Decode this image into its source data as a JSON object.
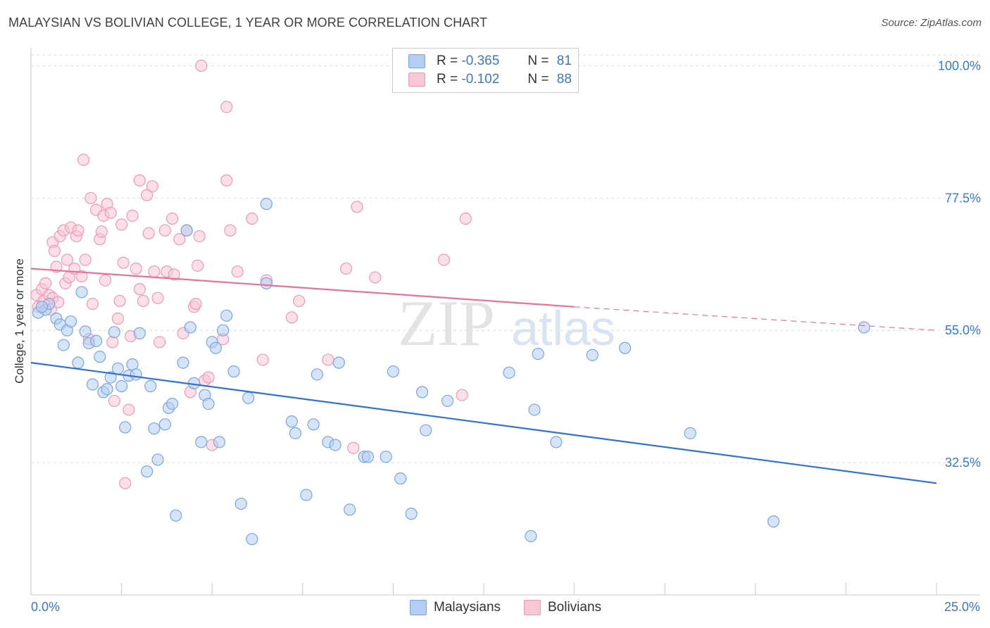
{
  "title": "MALAYSIAN VS BOLIVIAN COLLEGE, 1 YEAR OR MORE CORRELATION CHART",
  "source": "Source: ZipAtlas.com",
  "watermark": {
    "zip": "ZIP",
    "atlas": "atlas"
  },
  "legend": {
    "r_label": "R =",
    "n_label": "N =",
    "malaysian": {
      "r": "-0.365",
      "n": "81"
    },
    "bolivian": {
      "r": "-0.102",
      "n": "88"
    }
  },
  "bottom_legend": {
    "malaysians": "Malaysians",
    "bolivians": "Bolivians"
  },
  "colors": {
    "malaysian_fill": "#b4cdf2",
    "malaysian_stroke": "#7aa6e0",
    "malaysian_line": "#2f72d4",
    "bolivian_fill": "#f8c7d6",
    "bolivian_stroke": "#ef9ab5",
    "bolivian_line": "#e8729a",
    "axis_text": "#3a78c9",
    "grid": "#d9d9d9"
  },
  "chart_data": {
    "type": "scatter",
    "title": "MALAYSIAN VS BOLIVIAN COLLEGE, 1 YEAR OR MORE CORRELATION CHART",
    "xlabel": "",
    "ylabel": "College, 1 year or more",
    "xlim": [
      0,
      25
    ],
    "ylim": [
      10,
      104
    ],
    "x_tick_labels": [
      "0.0%",
      "25.0%"
    ],
    "y_ticks": [
      32.5,
      55.0,
      77.5,
      100.0
    ],
    "y_tick_labels": [
      "32.5%",
      "55.0%",
      "77.5%",
      "100.0%"
    ],
    "grid": true,
    "legend_position": "top-center",
    "series": [
      {
        "name": "Malaysians",
        "r": -0.365,
        "n": 81,
        "trend": {
          "x": [
            0,
            25
          ],
          "y": [
            49.5,
            29.0
          ],
          "dashed_from": null
        },
        "points": [
          [
            0.2,
            58
          ],
          [
            0.4,
            58.5
          ],
          [
            0.5,
            59.5
          ],
          [
            0.7,
            57
          ],
          [
            0.8,
            56
          ],
          [
            0.9,
            52.5
          ],
          [
            1.0,
            55
          ],
          [
            1.1,
            56.5
          ],
          [
            1.3,
            49.5
          ],
          [
            1.4,
            61.5
          ],
          [
            1.5,
            54.8
          ],
          [
            1.6,
            52.8
          ],
          [
            1.7,
            45.8
          ],
          [
            1.8,
            53.2
          ],
          [
            2.0,
            44.5
          ],
          [
            2.1,
            45
          ],
          [
            2.2,
            47
          ],
          [
            2.3,
            54.7
          ],
          [
            2.4,
            48.5
          ],
          [
            2.5,
            45.5
          ],
          [
            2.6,
            38.5
          ],
          [
            2.7,
            47.3
          ],
          [
            2.8,
            49.2
          ],
          [
            2.9,
            47.5
          ],
          [
            3.0,
            54.5
          ],
          [
            3.2,
            31
          ],
          [
            3.3,
            45.5
          ],
          [
            3.4,
            38.3
          ],
          [
            3.5,
            33
          ],
          [
            3.7,
            39
          ],
          [
            3.8,
            41.8
          ],
          [
            3.9,
            42.5
          ],
          [
            4.0,
            23.5
          ],
          [
            4.2,
            49.5
          ],
          [
            4.3,
            72
          ],
          [
            4.4,
            55.5
          ],
          [
            4.5,
            46
          ],
          [
            4.7,
            36
          ],
          [
            4.8,
            44
          ],
          [
            4.9,
            42.5
          ],
          [
            5.0,
            53
          ],
          [
            5.1,
            52
          ],
          [
            5.2,
            36
          ],
          [
            5.3,
            55
          ],
          [
            5.4,
            57.5
          ],
          [
            5.6,
            48
          ],
          [
            5.8,
            25.5
          ],
          [
            6.0,
            43.5
          ],
          [
            6.1,
            19.5
          ],
          [
            6.5,
            63
          ],
          [
            6.5,
            76.5
          ],
          [
            7.2,
            39.5
          ],
          [
            7.3,
            37.5
          ],
          [
            7.6,
            27
          ],
          [
            7.8,
            39
          ],
          [
            7.9,
            47.5
          ],
          [
            8.2,
            36
          ],
          [
            8.4,
            35.5
          ],
          [
            8.5,
            49.5
          ],
          [
            8.8,
            24.5
          ],
          [
            9.2,
            33.5
          ],
          [
            9.3,
            33.5
          ],
          [
            9.8,
            33.5
          ],
          [
            10.0,
            48
          ],
          [
            10.2,
            29.8
          ],
          [
            10.5,
            23.8
          ],
          [
            10.8,
            44.5
          ],
          [
            10.9,
            38
          ],
          [
            11.5,
            43
          ],
          [
            13.2,
            47.8
          ],
          [
            13.8,
            20
          ],
          [
            13.9,
            41.5
          ],
          [
            14.0,
            51
          ],
          [
            14.5,
            36
          ],
          [
            15.5,
            50.8
          ],
          [
            16.4,
            52
          ],
          [
            18.2,
            37.5
          ],
          [
            20.5,
            22.5
          ],
          [
            23.0,
            55.5
          ],
          [
            0.3,
            59
          ],
          [
            1.9,
            50.5
          ]
        ]
      },
      {
        "name": "Bolivians",
        "r": -0.102,
        "n": 88,
        "trend": {
          "x": [
            0,
            15,
            25
          ],
          "y": [
            65.5,
            59,
            55.0
          ],
          "dashed_from": 15
        },
        "points": [
          [
            0.15,
            61
          ],
          [
            0.2,
            59
          ],
          [
            0.3,
            62
          ],
          [
            0.35,
            60
          ],
          [
            0.4,
            63
          ],
          [
            0.5,
            61
          ],
          [
            0.55,
            58.5
          ],
          [
            0.6,
            70
          ],
          [
            0.6,
            60.5
          ],
          [
            0.65,
            68.5
          ],
          [
            0.7,
            65.8
          ],
          [
            0.75,
            59.8
          ],
          [
            0.8,
            71
          ],
          [
            0.9,
            72
          ],
          [
            0.95,
            63
          ],
          [
            1.0,
            67
          ],
          [
            1.05,
            64
          ],
          [
            1.1,
            72.5
          ],
          [
            1.2,
            65.5
          ],
          [
            1.25,
            71
          ],
          [
            1.3,
            72
          ],
          [
            1.4,
            64.2
          ],
          [
            1.45,
            84
          ],
          [
            1.5,
            67
          ],
          [
            1.6,
            53.5
          ],
          [
            1.65,
            77.5
          ],
          [
            1.7,
            59.5
          ],
          [
            1.8,
            75.5
          ],
          [
            1.9,
            70.5
          ],
          [
            1.95,
            71.8
          ],
          [
            2.0,
            74.5
          ],
          [
            2.05,
            63.5
          ],
          [
            2.1,
            76.5
          ],
          [
            2.2,
            75
          ],
          [
            2.25,
            53
          ],
          [
            2.3,
            43
          ],
          [
            2.4,
            57
          ],
          [
            2.45,
            60
          ],
          [
            2.5,
            73
          ],
          [
            2.55,
            66.5
          ],
          [
            2.6,
            29
          ],
          [
            2.7,
            41.5
          ],
          [
            2.75,
            54
          ],
          [
            2.8,
            74.5
          ],
          [
            2.9,
            65.5
          ],
          [
            3.0,
            80.5
          ],
          [
            3.1,
            60
          ],
          [
            3.2,
            78
          ],
          [
            3.25,
            71.5
          ],
          [
            3.35,
            79.5
          ],
          [
            3.4,
            65
          ],
          [
            3.5,
            60.5
          ],
          [
            3.55,
            53
          ],
          [
            3.7,
            72
          ],
          [
            3.75,
            65
          ],
          [
            3.9,
            74
          ],
          [
            3.95,
            64.5
          ],
          [
            4.1,
            70.5
          ],
          [
            4.2,
            54.5
          ],
          [
            4.3,
            72
          ],
          [
            4.4,
            44.5
          ],
          [
            4.5,
            59
          ],
          [
            4.55,
            59.5
          ],
          [
            4.6,
            66
          ],
          [
            4.65,
            71
          ],
          [
            4.8,
            46.5
          ],
          [
            4.9,
            47
          ],
          [
            5.0,
            35.5
          ],
          [
            5.3,
            53.5
          ],
          [
            5.4,
            80.5
          ],
          [
            5.5,
            72
          ],
          [
            5.7,
            65
          ],
          [
            6.1,
            74
          ],
          [
            6.4,
            50
          ],
          [
            6.5,
            63.5
          ],
          [
            7.2,
            57.2
          ],
          [
            7.4,
            60
          ],
          [
            8.2,
            50
          ],
          [
            8.7,
            65.5
          ],
          [
            8.9,
            35
          ],
          [
            9.0,
            76
          ],
          [
            9.5,
            64
          ],
          [
            11.4,
            67
          ],
          [
            11.9,
            44
          ],
          [
            12.0,
            74
          ],
          [
            4.7,
            100
          ],
          [
            5.4,
            93
          ],
          [
            3.0,
            62
          ]
        ]
      }
    ]
  }
}
